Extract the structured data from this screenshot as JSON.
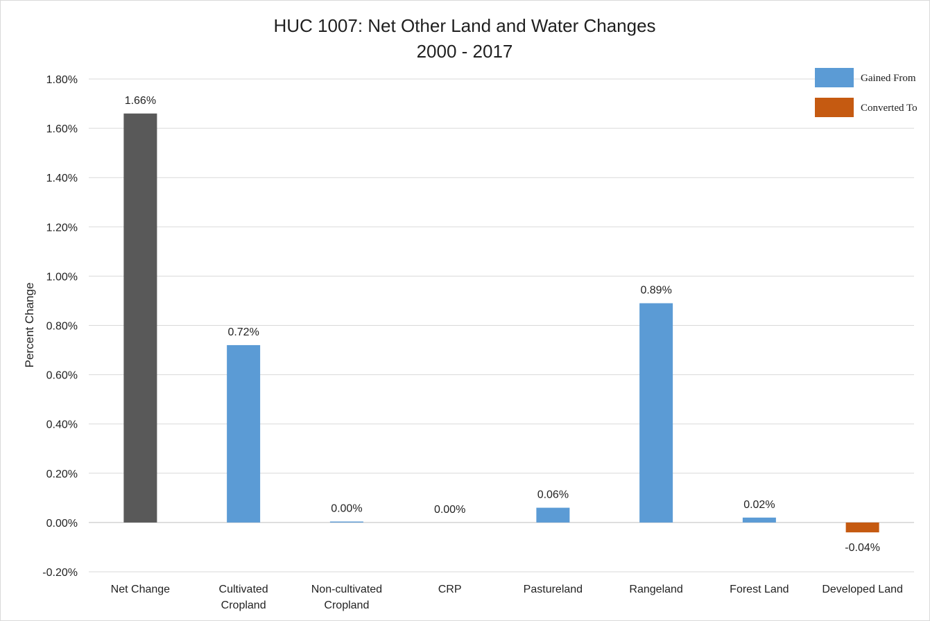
{
  "chart_data": {
    "type": "bar",
    "title": [
      "HUC 1007: Net Other Land and Water Changes",
      "2000 - 2017"
    ],
    "ylabel": "Percent Change",
    "xlabel": "",
    "ylim": [
      -0.2,
      1.8
    ],
    "yticks": [
      -0.2,
      0.0,
      0.2,
      0.4,
      0.6,
      0.8,
      1.0,
      1.2,
      1.4,
      1.6,
      1.8
    ],
    "ytick_labels": [
      "-0.20%",
      "0.00%",
      "0.20%",
      "0.40%",
      "0.60%",
      "0.80%",
      "1.00%",
      "1.20%",
      "1.40%",
      "1.60%",
      "1.80%"
    ],
    "grid": true,
    "legend_position": "top-right",
    "legend": [
      {
        "name": "Gained From",
        "color": "#5b9bd5"
      },
      {
        "name": "Converted To",
        "color": "#c55a11"
      }
    ],
    "categories": [
      [
        "Net Change"
      ],
      [
        "Cultivated",
        "Cropland"
      ],
      [
        "Non-cultivated",
        "Cropland"
      ],
      [
        "CRP"
      ],
      [
        "Pastureland"
      ],
      [
        "Rangeland"
      ],
      [
        "Forest Land"
      ],
      [
        "Developed Land"
      ]
    ],
    "values": [
      1.66,
      0.72,
      0.004,
      0.0,
      0.06,
      0.89,
      0.02,
      -0.04
    ],
    "data_labels": [
      "1.66%",
      "0.72%",
      "0.00%",
      "0.00%",
      "0.06%",
      "0.89%",
      "0.02%",
      "-0.04%"
    ],
    "bar_colors": [
      "#595959",
      "#5b9bd5",
      "#5b9bd5",
      "#5b9bd5",
      "#5b9bd5",
      "#5b9bd5",
      "#5b9bd5",
      "#c55a11"
    ]
  }
}
